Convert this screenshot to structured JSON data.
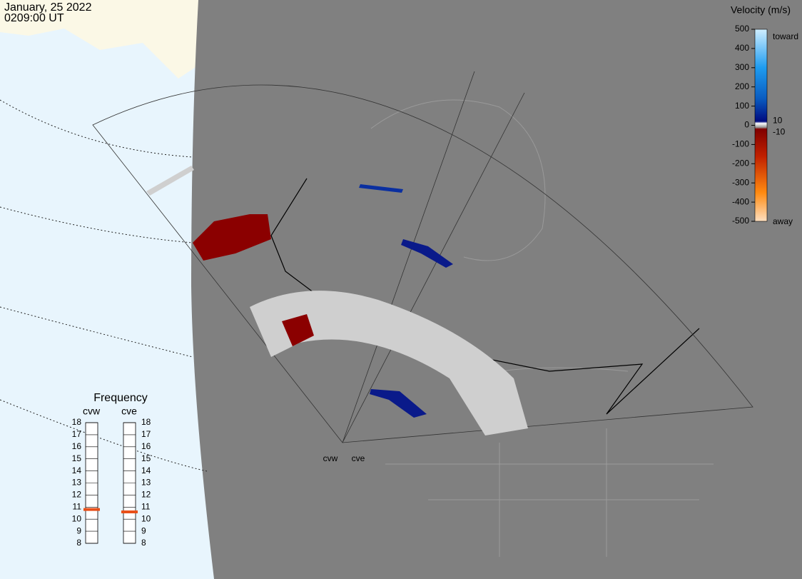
{
  "header": {
    "date": "January, 25 2022",
    "time": "0209:00 UT"
  },
  "colorbar": {
    "title": "Velocity (m/s)",
    "ticks": [
      500,
      400,
      300,
      200,
      100,
      0,
      -100,
      -200,
      -300,
      -400,
      -500
    ],
    "lim": [
      -500,
      500
    ],
    "inner_labels": [
      10,
      -10
    ],
    "top_label": "toward",
    "bottom_label": "away"
  },
  "frequency": {
    "title": "Frequency",
    "lim": [
      8,
      18
    ],
    "ticks": [
      8,
      9,
      10,
      11,
      12,
      13,
      14,
      15,
      16,
      17,
      18
    ],
    "radars": [
      {
        "name": "cvw",
        "value": 10.8
      },
      {
        "name": "cve",
        "value": 10.6
      }
    ]
  },
  "map": {
    "radar_labels": [
      "cvw",
      "cve"
    ]
  }
}
